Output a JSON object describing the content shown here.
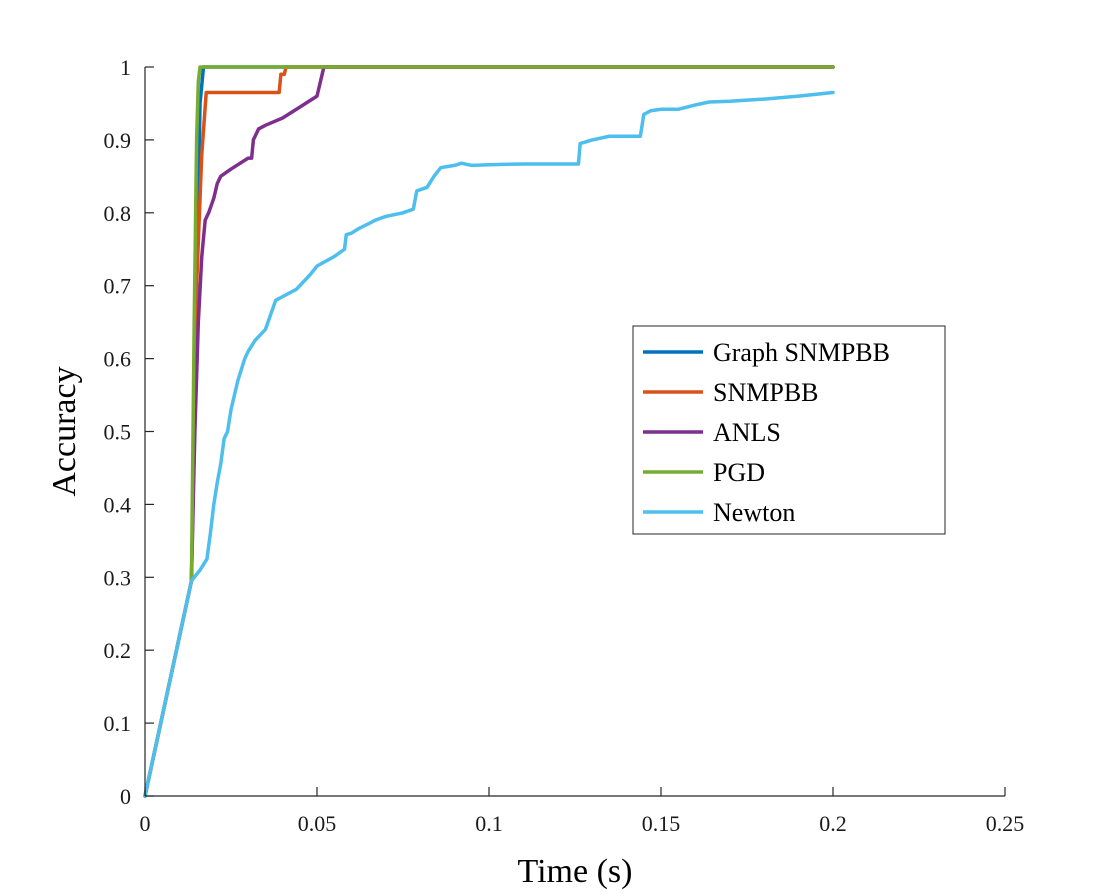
{
  "chart_data": {
    "type": "line",
    "title": "",
    "xlabel": "Time (s)",
    "ylabel": "Accuracy",
    "xlim": [
      0,
      0.25
    ],
    "ylim": [
      0,
      1
    ],
    "xticks": [
      0,
      0.05,
      0.1,
      0.15,
      0.2,
      0.25
    ],
    "xtick_labels": [
      "0",
      "0.05",
      "0.1",
      "0.15",
      "0.2",
      "0.25"
    ],
    "yticks": [
      0,
      0.1,
      0.2,
      0.3,
      0.4,
      0.5,
      0.6,
      0.7,
      0.8,
      0.9,
      1
    ],
    "ytick_labels": [
      "0",
      "0.1",
      "0.2",
      "0.3",
      "0.4",
      "0.5",
      "0.6",
      "0.7",
      "0.8",
      "0.9",
      "1"
    ],
    "grid": false,
    "legend_position": "center-right",
    "series": [
      {
        "name": "Graph SNMPBB",
        "color": "#0072BD",
        "x": [
          0,
          0.0135,
          0.015,
          0.016,
          0.0168,
          0.017,
          0.2
        ],
        "y": [
          0,
          0.295,
          0.7,
          0.95,
          0.99,
          1.0,
          1.0
        ]
      },
      {
        "name": "SNMPBB",
        "color": "#D95319",
        "x": [
          0,
          0.0135,
          0.015,
          0.0165,
          0.0178,
          0.039,
          0.0395,
          0.0405,
          0.041,
          0.042,
          0.2
        ],
        "y": [
          0,
          0.295,
          0.7,
          0.88,
          0.965,
          0.965,
          0.99,
          0.99,
          1.0,
          1.0,
          1.0
        ]
      },
      {
        "name": "ANLS",
        "color": "#7E2F8E",
        "x": [
          0,
          0.0135,
          0.0145,
          0.0155,
          0.0165,
          0.0175,
          0.0185,
          0.02,
          0.021,
          0.022,
          0.025,
          0.03,
          0.031,
          0.0315,
          0.033,
          0.035,
          0.04,
          0.045,
          0.05,
          0.0515,
          0.052,
          0.2
        ],
        "y": [
          0,
          0.295,
          0.5,
          0.65,
          0.74,
          0.79,
          0.8,
          0.82,
          0.84,
          0.85,
          0.86,
          0.875,
          0.875,
          0.9,
          0.915,
          0.92,
          0.93,
          0.945,
          0.96,
          0.99,
          1.0,
          1.0
        ]
      },
      {
        "name": "PGD",
        "color": "#77AC30",
        "x": [
          0,
          0.0135,
          0.0143,
          0.015,
          0.0155,
          0.016,
          0.2
        ],
        "y": [
          0,
          0.295,
          0.65,
          0.9,
          0.98,
          1.0,
          1.0
        ]
      },
      {
        "name": "Newton",
        "color": "#4DBEEE",
        "x": [
          0,
          0.0135,
          0.016,
          0.018,
          0.019,
          0.02,
          0.021,
          0.022,
          0.023,
          0.024,
          0.025,
          0.027,
          0.029,
          0.03,
          0.032,
          0.035,
          0.038,
          0.04,
          0.044,
          0.048,
          0.05,
          0.055,
          0.058,
          0.0585,
          0.06,
          0.062,
          0.065,
          0.067,
          0.07,
          0.075,
          0.078,
          0.079,
          0.082,
          0.084,
          0.086,
          0.09,
          0.092,
          0.095,
          0.1,
          0.11,
          0.12,
          0.126,
          0.1265,
          0.13,
          0.135,
          0.14,
          0.144,
          0.145,
          0.147,
          0.15,
          0.155,
          0.16,
          0.164,
          0.17,
          0.18,
          0.19,
          0.2
        ],
        "y": [
          0,
          0.295,
          0.31,
          0.325,
          0.36,
          0.4,
          0.43,
          0.455,
          0.49,
          0.5,
          0.53,
          0.57,
          0.6,
          0.61,
          0.625,
          0.64,
          0.68,
          0.685,
          0.695,
          0.715,
          0.727,
          0.74,
          0.75,
          0.77,
          0.772,
          0.778,
          0.785,
          0.79,
          0.795,
          0.8,
          0.805,
          0.83,
          0.835,
          0.85,
          0.862,
          0.865,
          0.868,
          0.865,
          0.866,
          0.867,
          0.867,
          0.867,
          0.895,
          0.9,
          0.905,
          0.905,
          0.905,
          0.935,
          0.94,
          0.942,
          0.942,
          0.948,
          0.952,
          0.953,
          0.956,
          0.96,
          0.965
        ]
      }
    ]
  }
}
